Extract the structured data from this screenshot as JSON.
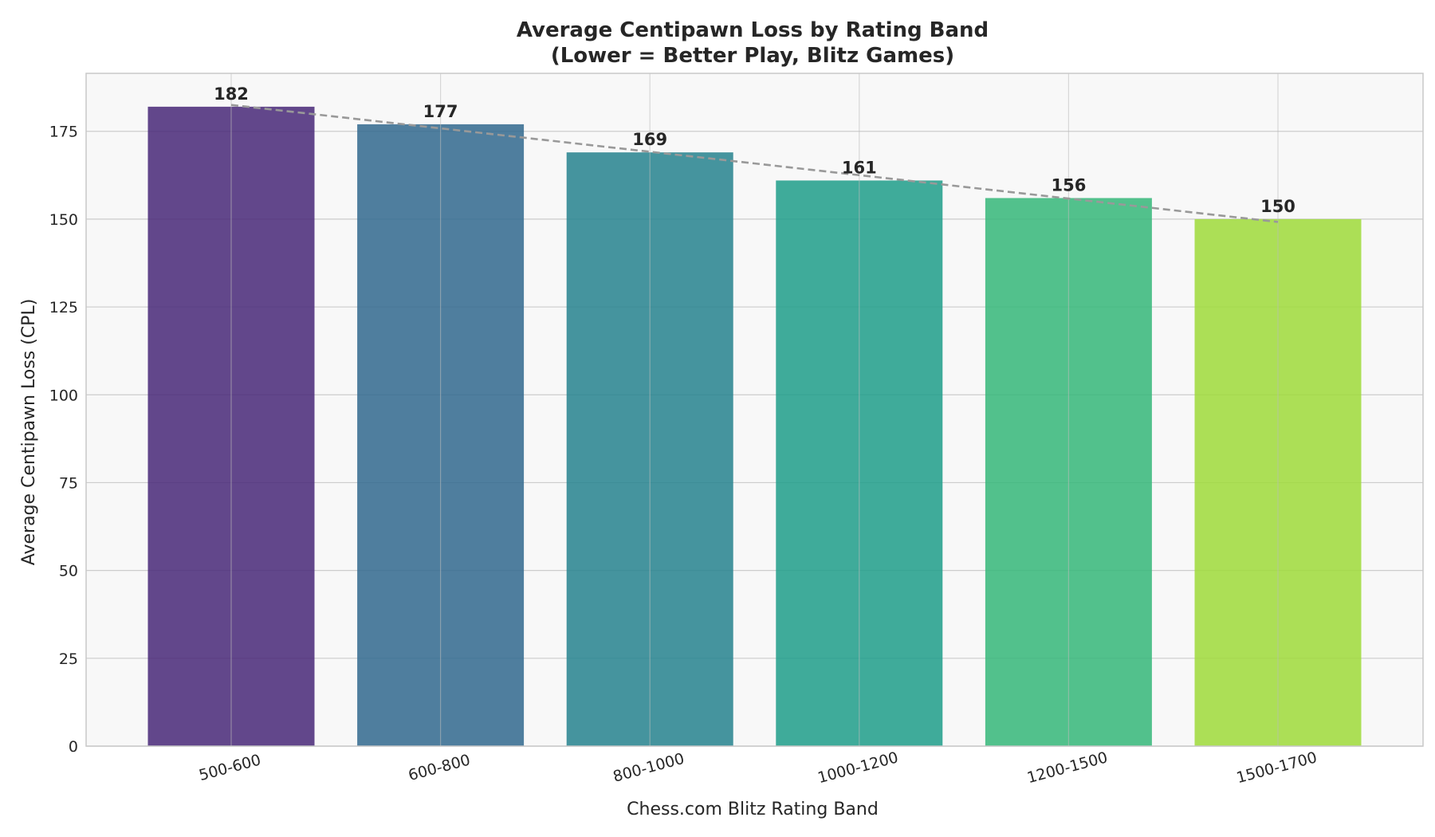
{
  "chart_data": {
    "type": "bar",
    "title_line1": "Average Centipawn Loss by Rating Band",
    "title_line2": "(Lower = Better Play, Blitz Games)",
    "xlabel": "Chess.com Blitz Rating Band",
    "ylabel": "Average Centipawn Loss (CPL)",
    "categories": [
      "500-600",
      "600-800",
      "800-1000",
      "1000-1200",
      "1200-1500",
      "1500-1700"
    ],
    "values": [
      182,
      177,
      169,
      161,
      156,
      150
    ],
    "value_labels": [
      "182",
      "177",
      "169",
      "161",
      "156",
      "150"
    ],
    "colors": [
      "#482878",
      "#31688e",
      "#26828e",
      "#1f9e89",
      "#35b779",
      "#9fda3a"
    ],
    "ylim": [
      0,
      191.5
    ],
    "yticks": [
      0,
      25,
      50,
      75,
      100,
      125,
      150,
      175
    ],
    "trend_line": {
      "start": 182.5,
      "end": 149.2,
      "color": "#999999",
      "style": "dashed"
    },
    "grid": true,
    "background": "#f8f8f8"
  }
}
